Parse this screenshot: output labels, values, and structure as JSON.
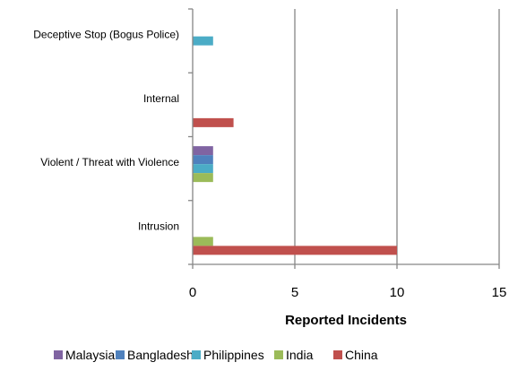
{
  "chart_data": {
    "type": "bar",
    "orientation": "horizontal",
    "categories": [
      "Deceptive Stop (Bogus Police)",
      "Internal",
      "Violent / Threat with Violence",
      "Intrusion"
    ],
    "series": [
      {
        "name": "Malaysia",
        "color": "#8064A2",
        "values": [
          0,
          0,
          1,
          0
        ]
      },
      {
        "name": "Bangladesh",
        "color": "#4F81BD",
        "values": [
          0,
          0,
          1,
          0
        ]
      },
      {
        "name": "Philippines",
        "color": "#4BACC6",
        "values": [
          1,
          0,
          1,
          0
        ]
      },
      {
        "name": "India",
        "color": "#9BBB59",
        "values": [
          0,
          0,
          1,
          1
        ]
      },
      {
        "name": "China",
        "color": "#C0504D",
        "values": [
          0,
          2,
          0,
          10
        ]
      }
    ],
    "xlabel": "Reported Incidents",
    "ylabel": "",
    "xlim": [
      0,
      15
    ],
    "xticks": [
      0,
      5,
      10,
      15
    ],
    "grid": "vertical",
    "legend_position": "bottom"
  }
}
